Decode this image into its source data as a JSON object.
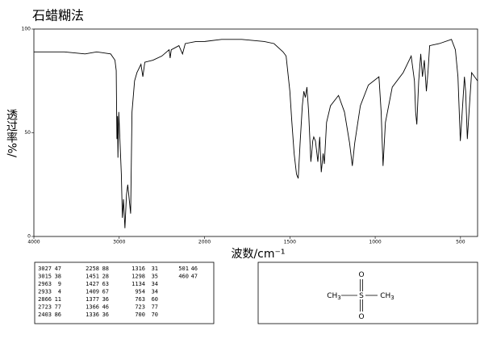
{
  "chart_data": {
    "type": "line",
    "title": "石蜡糊法",
    "xlabel": "波数/cm⁻¹",
    "ylabel": "透过率%/",
    "color": "#000000",
    "xlim": [
      4000,
      400
    ],
    "xticks": [
      4000,
      3000,
      2000,
      1500,
      1000,
      500
    ],
    "ylim": [
      0,
      100
    ],
    "yticks": [
      0,
      50,
      100
    ],
    "x": [
      4000,
      3800,
      3642,
      3400,
      3264,
      3100,
      3050,
      3035,
      3027,
      3020,
      3015,
      3005,
      2990,
      2975,
      2963,
      2950,
      2933,
      2915,
      2900,
      2866,
      2850,
      2820,
      2792,
      2745,
      2723,
      2700,
      2604,
      2500,
      2415,
      2403,
      2390,
      2300,
      2258,
      2226,
      2100,
      2000,
      1900,
      1782,
      1650,
      1593,
      1540,
      1522,
      1500,
      1489,
      1475,
      1461,
      1451,
      1440,
      1427,
      1418,
      1409,
      1400,
      1390,
      1377,
      1370,
      1366,
      1360,
      1350,
      1336,
      1325,
      1316,
      1305,
      1298,
      1285,
      1262,
      1215,
      1180,
      1150,
      1134,
      1120,
      1087,
      1040,
      978,
      965,
      954,
      940,
      900,
      836,
      789,
      770,
      763,
      756,
      745,
      733,
      723,
      712,
      700,
      690,
      681,
      624,
      553,
      530,
      515,
      501,
      490,
      477,
      470,
      460,
      450,
      435,
      400
    ],
    "values": [
      89,
      89,
      89,
      88,
      89,
      88,
      85,
      80,
      47,
      58,
      38,
      60,
      45,
      30,
      9,
      18,
      4,
      20,
      25,
      11,
      60,
      75,
      79,
      83,
      77,
      84,
      85,
      87,
      90,
      86,
      90,
      92,
      88,
      93,
      94,
      94,
      95,
      95,
      94,
      93,
      89,
      87,
      70,
      56,
      40,
      30,
      28,
      45,
      63,
      70,
      67,
      72,
      60,
      36,
      42,
      46,
      48,
      46,
      36,
      48,
      31,
      40,
      35,
      55,
      63,
      68,
      60,
      45,
      34,
      45,
      63,
      73,
      77,
      60,
      34,
      55,
      72,
      79,
      87,
      75,
      60,
      54,
      75,
      88,
      77,
      85,
      70,
      80,
      92,
      93,
      95,
      90,
      77,
      46,
      60,
      77,
      70,
      47,
      60,
      79,
      75
    ]
  },
  "table": {
    "rows": [
      [
        [
          "3027",
          "47"
        ],
        [
          "2258",
          "88"
        ],
        [
          "1316",
          "31"
        ],
        [
          "501",
          "46"
        ]
      ],
      [
        [
          "3015",
          "38"
        ],
        [
          "1451",
          "28"
        ],
        [
          "1298",
          "35"
        ],
        [
          "460",
          "47"
        ]
      ],
      [
        [
          "2963",
          "9"
        ],
        [
          "1427",
          "63"
        ],
        [
          "1134",
          "34"
        ]
      ],
      [
        [
          "2933",
          "4"
        ],
        [
          "1409",
          "67"
        ],
        [
          "954",
          "34"
        ]
      ],
      [
        [
          "2866",
          "11"
        ],
        [
          "1377",
          "36"
        ],
        [
          "763",
          "60"
        ]
      ],
      [
        [
          "2723",
          "77"
        ],
        [
          "1366",
          "46"
        ],
        [
          "723",
          "77"
        ]
      ],
      [
        [
          "2403",
          "86"
        ],
        [
          "1336",
          "36"
        ],
        [
          "700",
          "70"
        ]
      ]
    ]
  },
  "structure": {
    "atoms": [
      {
        "label": "CH",
        "sub": "3"
      },
      {
        "label": "S"
      },
      {
        "label": "O"
      },
      {
        "label": "O"
      },
      {
        "label": "CH",
        "sub": "3"
      }
    ]
  }
}
